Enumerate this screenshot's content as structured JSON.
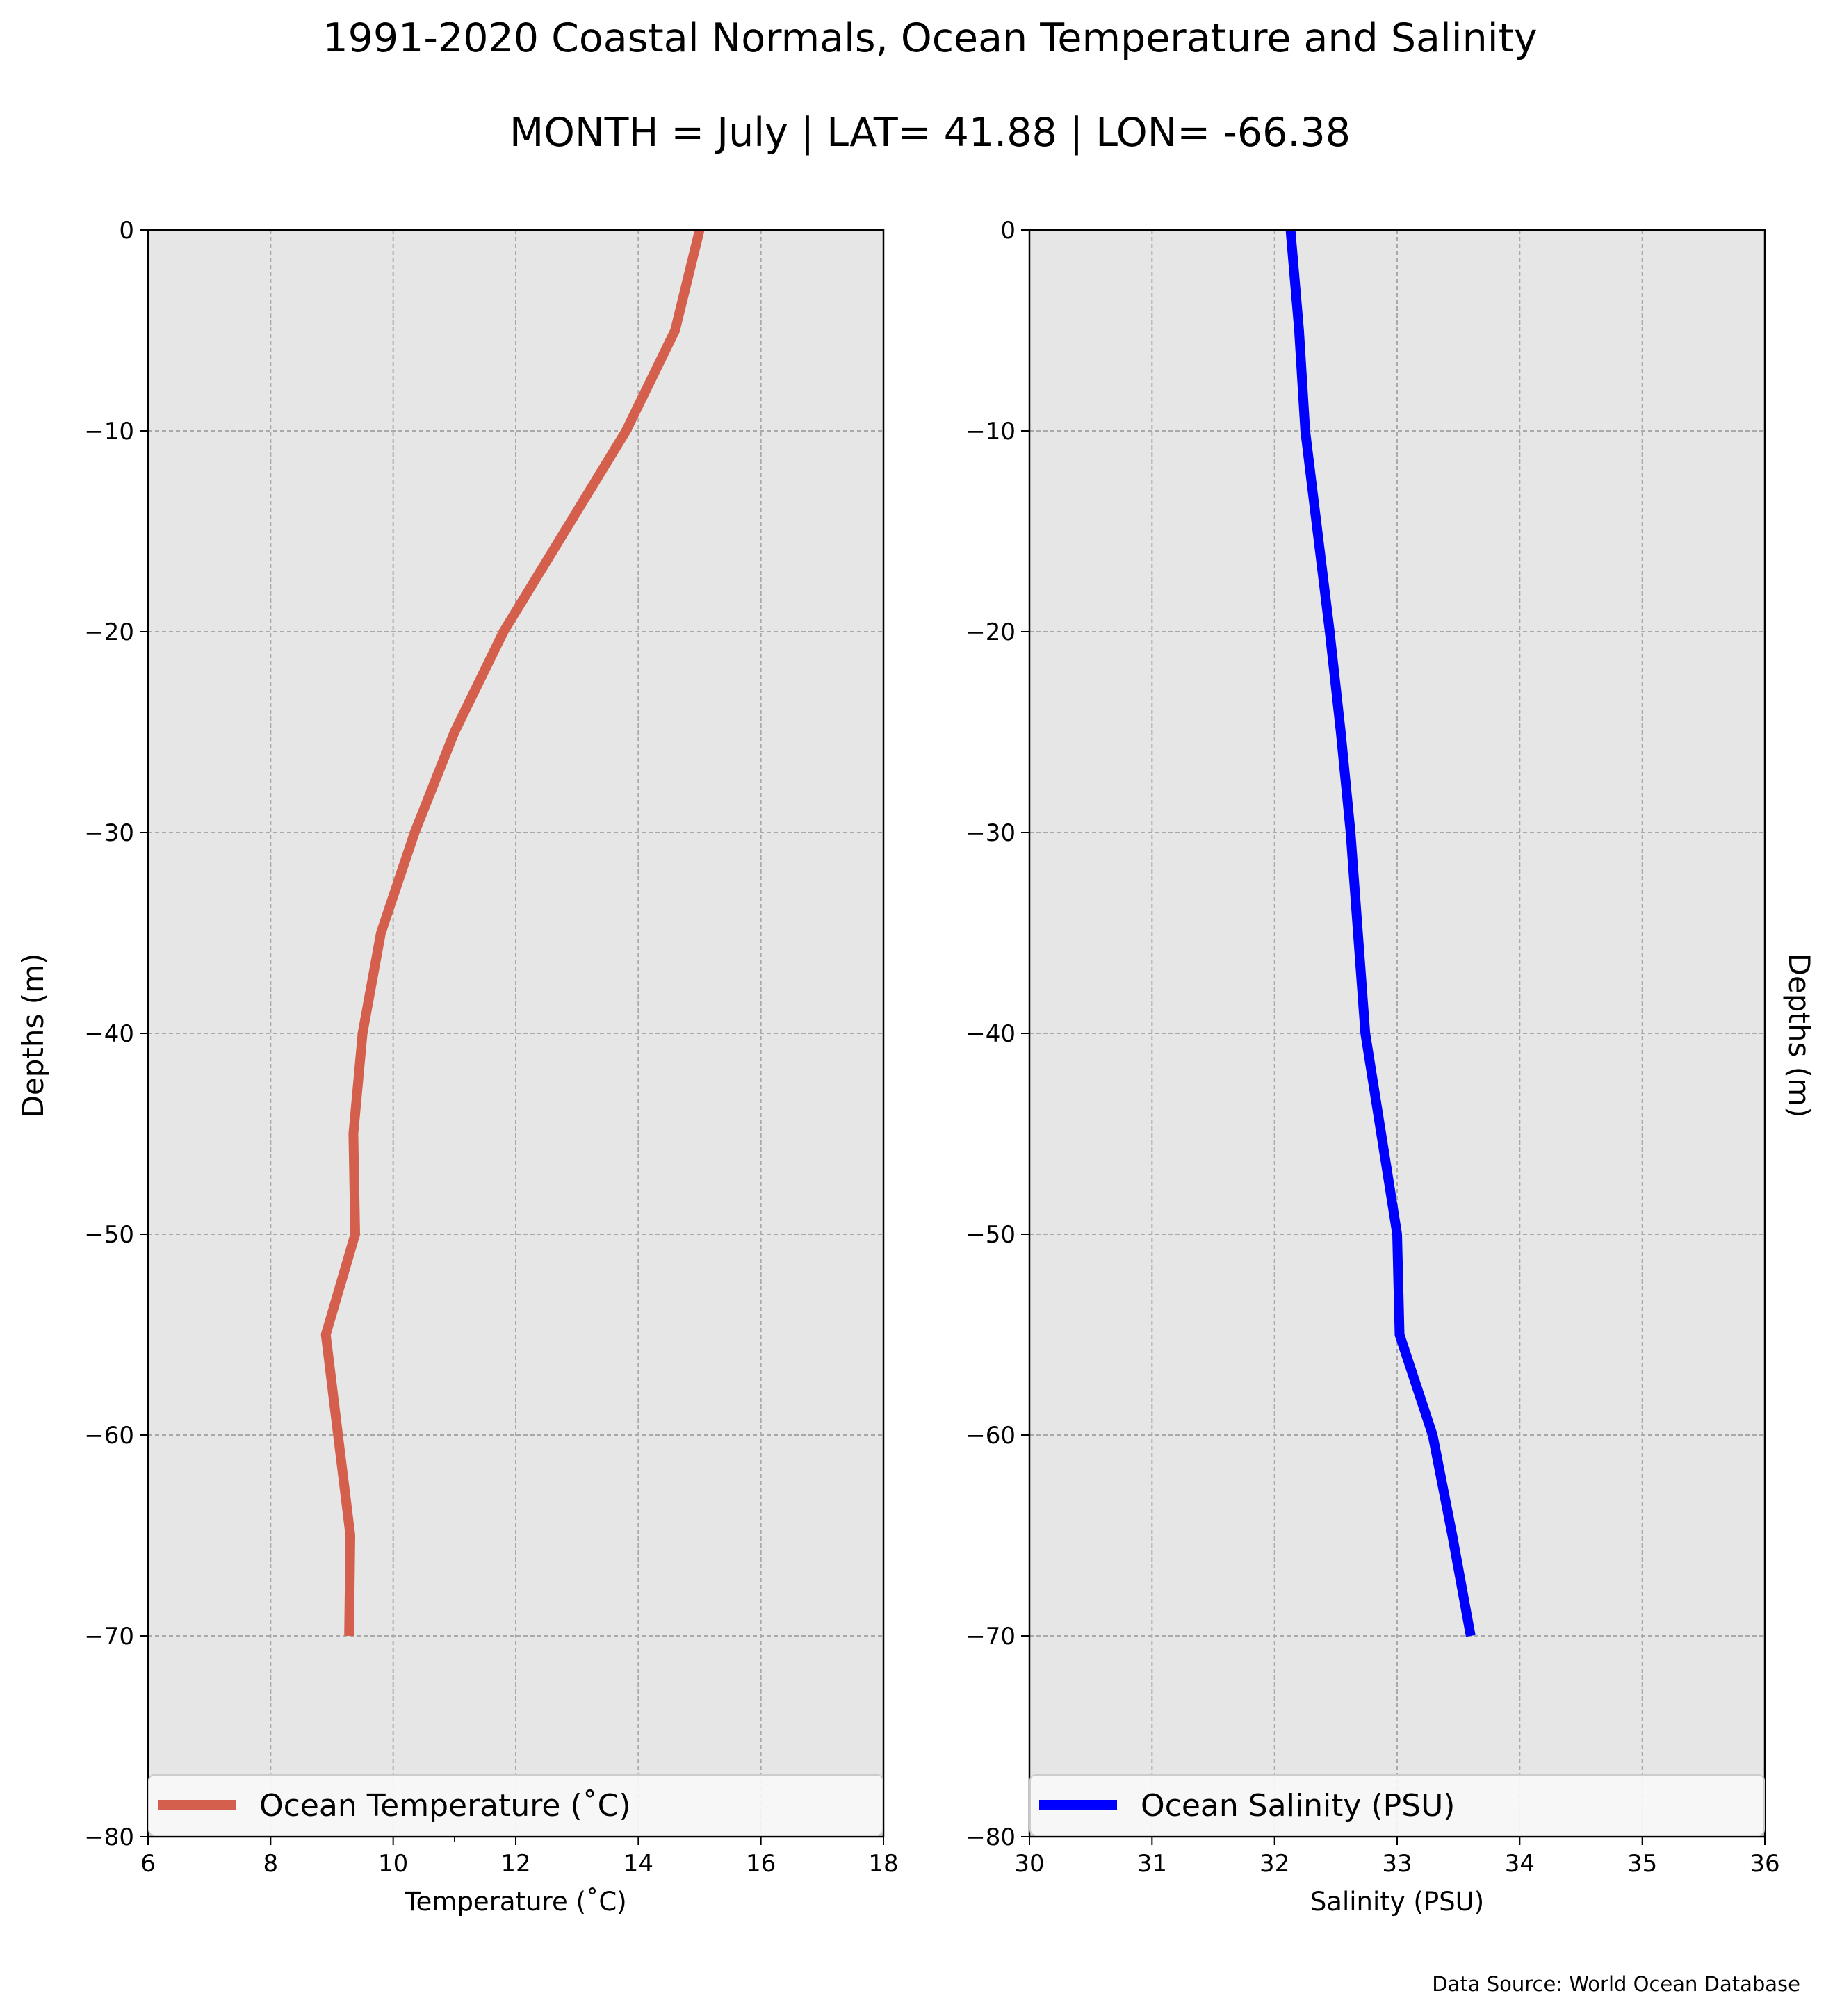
{
  "figure": {
    "title_line1": "1991-2020 Coastal Normals, Ocean Temperature and Salinity",
    "title_line2": "MONTH = July | LAT= 41.88 | LON= -66.38",
    "source": "Data Source: World Ocean Database"
  },
  "chart_data": [
    {
      "type": "line",
      "title": "",
      "xlabel": "Temperature ($^\\circ$C)",
      "xlabel_display": "Temperature (˚C)",
      "ylabel": "Depths (m)",
      "xlim": [
        6,
        18
      ],
      "ylim": [
        -80,
        0
      ],
      "xticks": [
        6,
        8,
        10,
        12,
        14,
        16,
        18
      ],
      "yticks": [
        0,
        -10,
        -20,
        -30,
        -40,
        -50,
        -60,
        -70,
        -80
      ],
      "ytick_labels": [
        "0",
        "−10",
        "−20",
        "−30",
        "−40",
        "−50",
        "−60",
        "−70",
        "−80"
      ],
      "grid": true,
      "background": "#e6e6e6",
      "legend_placement": "lower center",
      "series": [
        {
          "name": "Ocean Temperature (˚C)",
          "color": "#d45f4c",
          "x": [
            15.0,
            14.6,
            13.8,
            12.8,
            11.8,
            11.0,
            10.35,
            9.8,
            9.5,
            9.35,
            9.38,
            8.9,
            9.1,
            9.3,
            9.28
          ],
          "y": [
            0,
            -5,
            -10,
            -15,
            -20,
            -25,
            -30,
            -35,
            -40,
            -45,
            -50,
            -55,
            -60,
            -65,
            -70
          ]
        }
      ]
    },
    {
      "type": "line",
      "title": "",
      "xlabel": "Salinity (PSU)",
      "ylabel": "Depths (m)",
      "xlim": [
        30,
        36
      ],
      "ylim": [
        -80,
        0
      ],
      "xticks": [
        30,
        31,
        32,
        33,
        34,
        35,
        36
      ],
      "yticks": [
        0,
        -10,
        -20,
        -30,
        -40,
        -50,
        -60,
        -70,
        -80
      ],
      "ytick_labels": [
        "0",
        "−10",
        "−20",
        "−30",
        "−40",
        "−50",
        "−60",
        "−70",
        "−80"
      ],
      "grid": true,
      "background": "#e6e6e6",
      "legend_placement": "lower center",
      "series": [
        {
          "name": "Ocean Salinity (PSU)",
          "color": "#0000ff",
          "x": [
            32.13,
            32.2,
            32.25,
            32.35,
            32.45,
            32.54,
            32.62,
            32.68,
            32.74,
            32.87,
            33.0,
            33.02,
            33.29,
            33.45,
            33.6
          ],
          "y": [
            0,
            -5,
            -10,
            -15,
            -20,
            -25,
            -30,
            -35,
            -40,
            -45,
            -50,
            -55,
            -60,
            -65,
            -70
          ]
        }
      ]
    }
  ]
}
